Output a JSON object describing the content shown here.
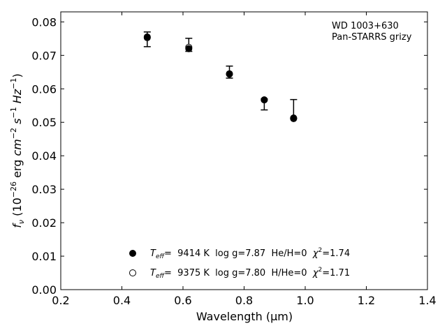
{
  "chart_data": {
    "type": "scatter",
    "xlabel": "Wavelength (μm)",
    "ylabel": "f_ν (10^-26 erg cm^-2 s^-1 Hz^-1)",
    "xlim": [
      0.2,
      1.4
    ],
    "ylim": [
      0.0,
      0.083
    ],
    "x_ticks": [
      0.2,
      0.4,
      0.6,
      0.8,
      1.0,
      1.2,
      1.4
    ],
    "x_tick_labels": [
      "0.2",
      "0.4",
      "0.6",
      "0.8",
      "1.0",
      "1.2",
      "1.4"
    ],
    "y_ticks": [
      0.0,
      0.01,
      0.02,
      0.03,
      0.04,
      0.05,
      0.06,
      0.07,
      0.08
    ],
    "y_tick_labels": [
      "0.00",
      "0.01",
      "0.02",
      "0.03",
      "0.04",
      "0.05",
      "0.06",
      "0.07",
      "0.08"
    ],
    "grid": false,
    "annotation": [
      "WD 1003+630",
      "Pan-STARRS grizy"
    ],
    "observed": {
      "x": [
        0.483,
        0.619,
        0.752,
        0.866,
        0.962
      ],
      "y": [
        0.0748,
        0.0731,
        0.0649,
        0.0552,
        0.0535
      ],
      "yerr_low": [
        0.0022,
        0.0019,
        0.0017,
        0.0015,
        0.0023
      ],
      "yerr_high": [
        0.0022,
        0.002,
        0.0019,
        0.0018,
        0.0033
      ]
    },
    "series": [
      {
        "label_parts": {
          "teff": "T",
          "teff_sub": "eff",
          "value": "=  9414 K  log g=7.87  He/H=0  ",
          "chi": "χ",
          "chi_sup": "2",
          "chi_val": "=1.74"
        },
        "marker": "filled-circle",
        "x": [
          0.483,
          0.619,
          0.752,
          0.866,
          0.962
        ],
        "y": [
          0.0755,
          0.072,
          0.0645,
          0.0567,
          0.0513
        ]
      },
      {
        "label_parts": {
          "teff": "T",
          "teff_sub": "eff",
          "value": "=  9375 K  log g=7.80  H/He=0  ",
          "chi": "χ",
          "chi_sup": "2",
          "chi_val": "=1.71"
        },
        "marker": "open-circle",
        "x": [
          0.483,
          0.619,
          0.752,
          0.866,
          0.962
        ],
        "y": [
          0.0753,
          0.0724,
          0.0644,
          0.0567,
          0.0511
        ]
      }
    ],
    "legend_position": "bottom-center"
  }
}
